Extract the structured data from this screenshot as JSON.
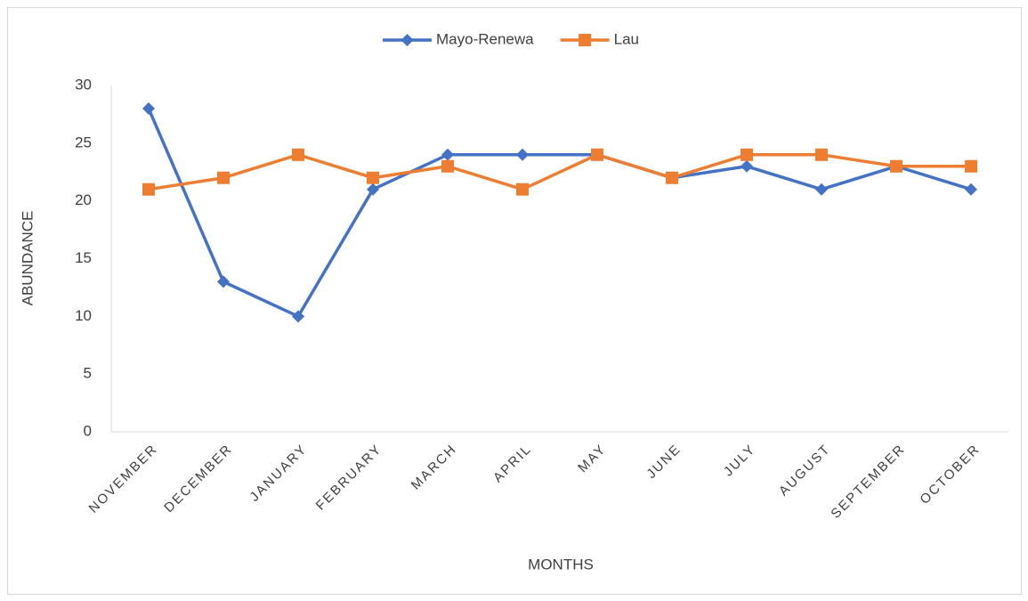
{
  "chart_data": {
    "type": "line",
    "x_label": "MONTHS",
    "y_label": "ABUNDANCE",
    "categories": [
      "NOVEMBER",
      "DECEMBER",
      "JANUARY",
      "FEBRUARY",
      "MARCH",
      "APRIL",
      "MAY",
      "JUNE",
      "JULY",
      "AUGUST",
      "SEPTEMBER",
      "OCTOBER"
    ],
    "series": [
      {
        "name": "Mayo-Renewa",
        "color": "#4472c4",
        "marker": "diamond",
        "values": [
          28,
          13,
          10,
          21,
          24,
          24,
          24,
          22,
          23,
          21,
          23,
          21
        ]
      },
      {
        "name": "Lau",
        "color": "#ed7d31",
        "marker": "square",
        "values": [
          21,
          22,
          24,
          22,
          23,
          21,
          24,
          22,
          24,
          24,
          23,
          23
        ]
      }
    ],
    "ylim": [
      0,
      30
    ],
    "yticks": [
      0,
      5,
      10,
      15,
      20,
      25,
      30
    ],
    "grid": false,
    "legend": "top"
  }
}
